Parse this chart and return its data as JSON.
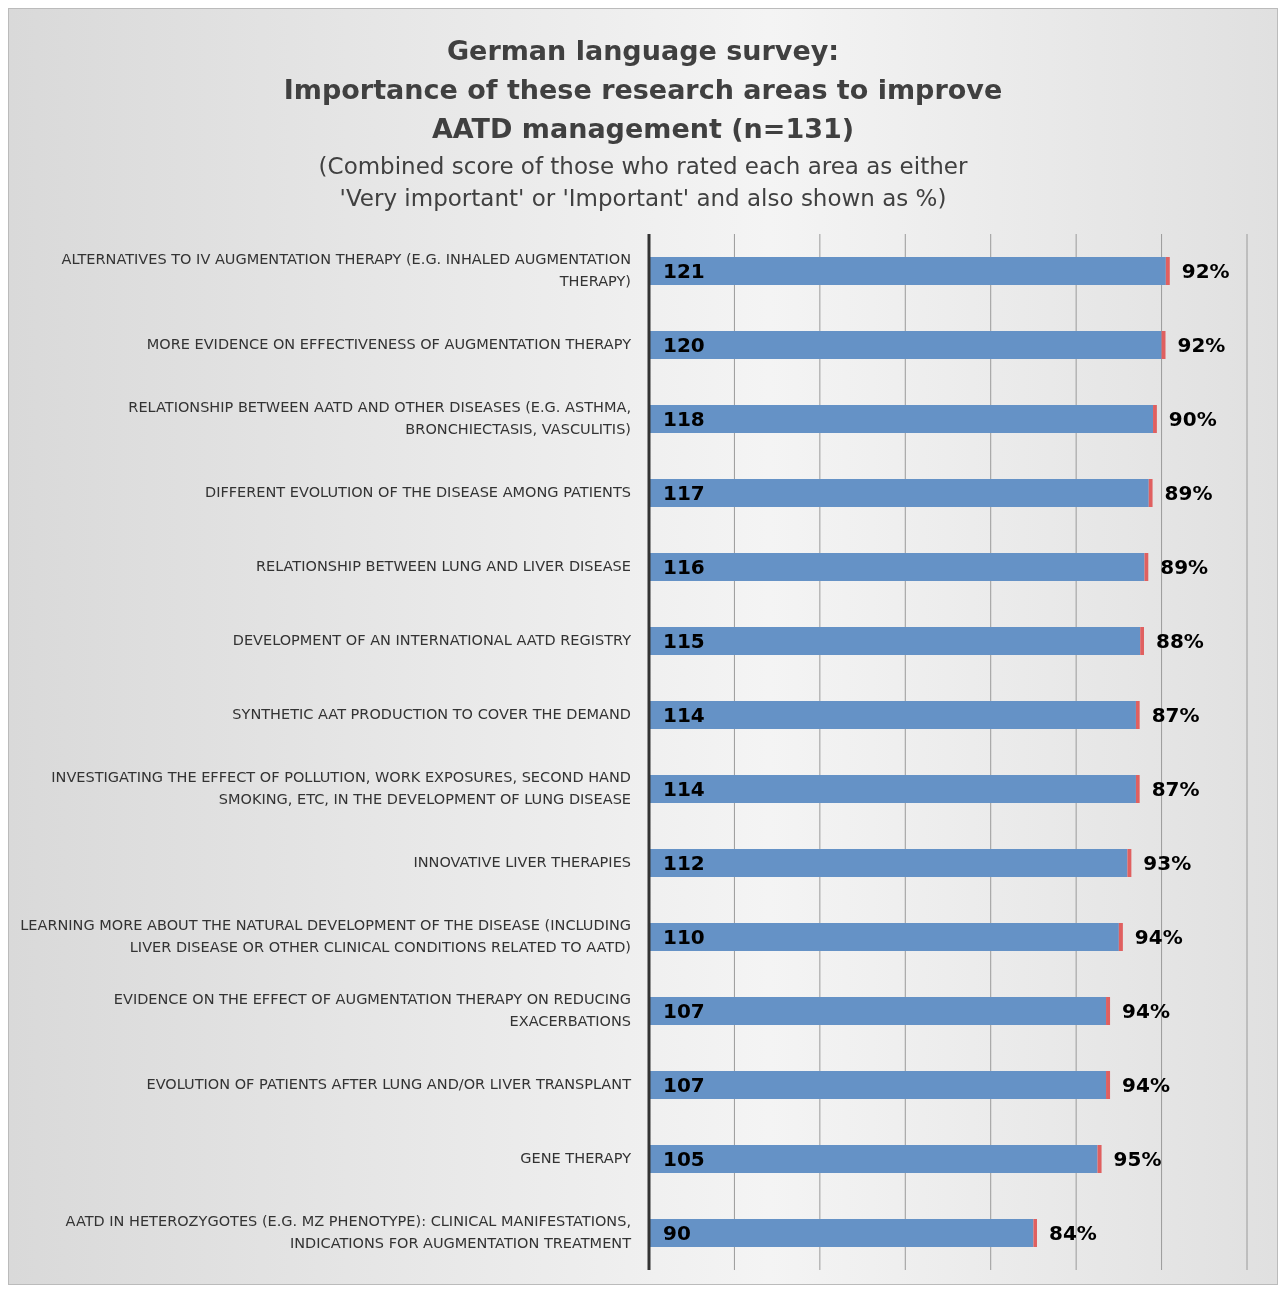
{
  "chart_data": {
    "type": "bar",
    "orientation": "horizontal",
    "stacked": true,
    "title": "German language survey:\nImportance of these research areas to improve\nAATD management (n=131)",
    "subtitle": "(Combined score of those who rated each area as either\n'Very important' or 'Important' and also shown as %)",
    "categories": [
      "ALTERNATIVES TO IV AUGMENTATION THERAPY (E.G. INHALED AUGMENTATION THERAPY)",
      "MORE EVIDENCE ON EFFECTIVENESS OF AUGMENTATION THERAPY",
      "RELATIONSHIP BETWEEN AATD AND OTHER DISEASES (E.G. ASTHMA, BRONCHIECTASIS, VASCULITIS)",
      "DIFFERENT EVOLUTION OF THE DISEASE AMONG PATIENTS",
      "RELATIONSHIP BETWEEN LUNG AND LIVER DISEASE",
      "DEVELOPMENT OF AN INTERNATIONAL AATD REGISTRY",
      "SYNTHETIC AAT PRODUCTION TO COVER THE DEMAND",
      "INVESTIGATING THE EFFECT OF POLLUTION, WORK EXPOSURES, SECOND HAND SMOKING, ETC, IN THE DEVELOPMENT OF LUNG DISEASE",
      "INNOVATIVE LIVER THERAPIES",
      "LEARNING MORE ABOUT THE NATURAL DEVELOPMENT OF THE DISEASE (INCLUDING LIVER DISEASE OR OTHER CLINICAL CONDITIONS RELATED TO AATD)",
      "EVIDENCE ON THE EFFECT OF AUGMENTATION THERAPY ON REDUCING EXACERBATIONS",
      "EVOLUTION OF PATIENTS AFTER LUNG AND/OR LIVER TRANSPLANT",
      "GENE THERAPY",
      "AATD IN HETEROZYGOTES (E.G. MZ PHENOTYPE): CLINICAL MANIFESTATIONS, INDICATIONS FOR AUGMENTATION TREATMENT"
    ],
    "series": [
      {
        "color": "#6592c6",
        "values": [
          121,
          120,
          118,
          117,
          116,
          115,
          114,
          114,
          112,
          110,
          107,
          107,
          105,
          90
        ],
        "value_labels": [
          "121",
          "120",
          "118",
          "117",
          "116",
          "115",
          "114",
          "114",
          "112",
          "110",
          "107",
          "107",
          "105",
          "90"
        ]
      },
      {
        "color": "#e06060",
        "values": [
          0.92,
          0.92,
          0.9,
          0.89,
          0.89,
          0.88,
          0.87,
          0.87,
          0.93,
          0.94,
          0.94,
          0.94,
          0.95,
          0.84
        ],
        "value_labels": [
          "92%",
          "92%",
          "90%",
          "89%",
          "89%",
          "88%",
          "87%",
          "87%",
          "93%",
          "94%",
          "94%",
          "94%",
          "95%",
          "84%"
        ]
      }
    ],
    "grid": "x",
    "tick_labels": "y",
    "legend": false
  }
}
